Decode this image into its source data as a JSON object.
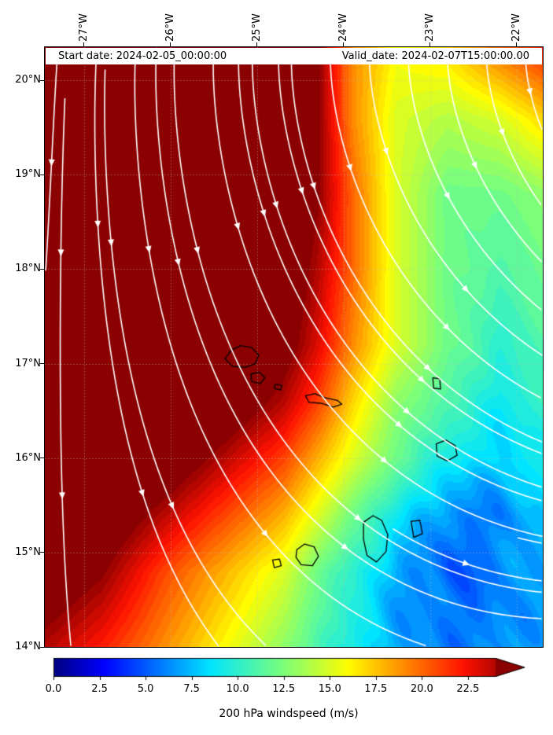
{
  "figure": {
    "start_date_label": "Start date: 2024-02-05_00:00:00",
    "valid_date_label": "Valid_date: 2024-02-07T15:00:00.00",
    "colorbar_label": "200 hPa windspeed (m/s)"
  },
  "axes": {
    "x_ticks": [
      "27°W",
      "26°W",
      "25°W",
      "24°W",
      "23°W",
      "22°W"
    ],
    "x_tick_values": [
      -27,
      -26,
      -25,
      -24,
      -23,
      -22
    ],
    "y_ticks": [
      "20°N",
      "19°N",
      "18°N",
      "17°N",
      "16°N",
      "15°N",
      "14°N"
    ],
    "y_tick_values": [
      20,
      19,
      18,
      17,
      16,
      15,
      14
    ]
  },
  "chart_data": {
    "type": "heatmap",
    "title": "200 hPa windspeed",
    "units": "m/s",
    "lon_range": [
      -27.45,
      -21.7
    ],
    "lat_range": [
      14.0,
      20.35
    ],
    "grid_lons": [
      -27.45,
      -26.8,
      -26.1,
      -25.4,
      -24.7,
      -24.3,
      -23.9,
      -23.4,
      -22.8,
      -22.2,
      -21.7
    ],
    "grid_lats": [
      20.35,
      19.6,
      18.8,
      18.0,
      17.2,
      16.6,
      16.0,
      15.4,
      14.8,
      14.0
    ],
    "speed_grid": [
      [
        28,
        28,
        28,
        28,
        27,
        25,
        19,
        16,
        17,
        20,
        22
      ],
      [
        28,
        28,
        28,
        28,
        27,
        25,
        19,
        15,
        14,
        15,
        17
      ],
      [
        28,
        28,
        28,
        28,
        27,
        25,
        20,
        15,
        12,
        12,
        13
      ],
      [
        28,
        28,
        28,
        28,
        27,
        24,
        20,
        15,
        12,
        11,
        12
      ],
      [
        28,
        28,
        28,
        28,
        26,
        23,
        19,
        15,
        12,
        10,
        11
      ],
      [
        28,
        28,
        28,
        27,
        24,
        21,
        17,
        13,
        11,
        9,
        10
      ],
      [
        28,
        28,
        27,
        24,
        21,
        18,
        15,
        12,
        9,
        8,
        9
      ],
      [
        28,
        27,
        24,
        21,
        18,
        15,
        12,
        9,
        6,
        6,
        8
      ],
      [
        27,
        25,
        21,
        18,
        15,
        12,
        10,
        7,
        5,
        6,
        7
      ],
      [
        24,
        22,
        19,
        16,
        13,
        11,
        9,
        7,
        6,
        6,
        7
      ]
    ],
    "colormap": {
      "name": "jet-extended-max",
      "vmin": 0,
      "vmax": 25,
      "over_color": "#8b0000",
      "stops": [
        [
          0,
          "#000080"
        ],
        [
          2.75,
          "#0000ff"
        ],
        [
          8.5,
          "#00e5ff"
        ],
        [
          12.5,
          "#7cff79"
        ],
        [
          16,
          "#fffc00"
        ],
        [
          22.25,
          "#ff1200"
        ],
        [
          25,
          "#8b0000"
        ]
      ]
    },
    "colorbar_tick_values": [
      0,
      2.5,
      5,
      7.5,
      10,
      12.5,
      15,
      17.5,
      20,
      22.5
    ],
    "colorbar_tick_labels": [
      "0.0",
      "2.5",
      "5.0",
      "7.5",
      "10.0",
      "12.5",
      "15.0",
      "17.5",
      "20.0",
      "22.5"
    ],
    "gridlines": {
      "lons": [
        -27,
        -26,
        -25,
        -24,
        -23,
        -22
      ],
      "lats": [
        14,
        15,
        16,
        17,
        18,
        19,
        20
      ]
    },
    "streamlines": {
      "color": "#ffffff",
      "params": {
        "base_deg": -94,
        "turn_deg": 94,
        "pow_lon": 1.2,
        "pow_lat": 1.0,
        "pow_se": 0.65
      },
      "seeds_top_lons": [
        -27.3,
        -26.85,
        -26.4,
        -25.95,
        -25.5,
        -25.05,
        -24.6,
        -24.15,
        -23.7,
        -23.25,
        -22.8,
        -22.35,
        -21.9
      ],
      "seeds_right_lats": [
        14.3,
        14.7,
        15.1,
        15.55,
        16.05,
        16.55,
        17.1
      ],
      "seeds_bottom_lons": [
        -27.15,
        -24.9
      ]
    },
    "coastlines": {
      "color": "#000000",
      "islands": [
        {
          "name": "santo-antao",
          "points": [
            [
              -25.37,
              17.05
            ],
            [
              -25.3,
              17.14
            ],
            [
              -25.19,
              17.19
            ],
            [
              -25.06,
              17.17
            ],
            [
              -24.98,
              17.09
            ],
            [
              -25.02,
              17.0
            ],
            [
              -25.14,
              16.96
            ],
            [
              -25.28,
              16.97
            ]
          ]
        },
        {
          "name": "sao-vicente",
          "points": [
            [
              -25.07,
              16.89
            ],
            [
              -24.97,
              16.91
            ],
            [
              -24.91,
              16.85
            ],
            [
              -24.96,
              16.79
            ],
            [
              -25.06,
              16.81
            ]
          ]
        },
        {
          "name": "santa-luzia",
          "points": [
            [
              -24.79,
              16.78
            ],
            [
              -24.71,
              16.77
            ],
            [
              -24.73,
              16.72
            ],
            [
              -24.8,
              16.74
            ]
          ]
        },
        {
          "name": "sao-nicolau",
          "points": [
            [
              -24.44,
              16.66
            ],
            [
              -24.33,
              16.68
            ],
            [
              -24.22,
              16.64
            ],
            [
              -24.07,
              16.61
            ],
            [
              -24.02,
              16.57
            ],
            [
              -24.12,
              16.54
            ],
            [
              -24.26,
              16.58
            ],
            [
              -24.4,
              16.59
            ]
          ]
        },
        {
          "name": "sal",
          "points": [
            [
              -22.97,
              16.85
            ],
            [
              -22.89,
              16.84
            ],
            [
              -22.88,
              16.73
            ],
            [
              -22.96,
              16.74
            ]
          ]
        },
        {
          "name": "boa-vista",
          "points": [
            [
              -22.93,
              16.15
            ],
            [
              -22.82,
              16.19
            ],
            [
              -22.71,
              16.13
            ],
            [
              -22.69,
              16.03
            ],
            [
              -22.8,
              15.97
            ],
            [
              -22.92,
              16.02
            ]
          ]
        },
        {
          "name": "maio",
          "points": [
            [
              -23.22,
              15.33
            ],
            [
              -23.12,
              15.34
            ],
            [
              -23.09,
              15.2
            ],
            [
              -23.19,
              15.16
            ]
          ]
        },
        {
          "name": "santiago",
          "points": [
            [
              -23.77,
              15.32
            ],
            [
              -23.66,
              15.39
            ],
            [
              -23.56,
              15.34
            ],
            [
              -23.49,
              15.19
            ],
            [
              -23.51,
              15.01
            ],
            [
              -23.62,
              14.9
            ],
            [
              -23.73,
              14.97
            ],
            [
              -23.77,
              15.14
            ]
          ]
        },
        {
          "name": "fogo",
          "points": [
            [
              -24.54,
              15.03
            ],
            [
              -24.45,
              15.09
            ],
            [
              -24.34,
              15.06
            ],
            [
              -24.29,
              14.96
            ],
            [
              -24.36,
              14.86
            ],
            [
              -24.49,
              14.87
            ],
            [
              -24.55,
              14.95
            ]
          ]
        },
        {
          "name": "brava",
          "points": [
            [
              -24.82,
              14.92
            ],
            [
              -24.74,
              14.93
            ],
            [
              -24.72,
              14.86
            ],
            [
              -24.8,
              14.84
            ]
          ]
        }
      ]
    }
  }
}
